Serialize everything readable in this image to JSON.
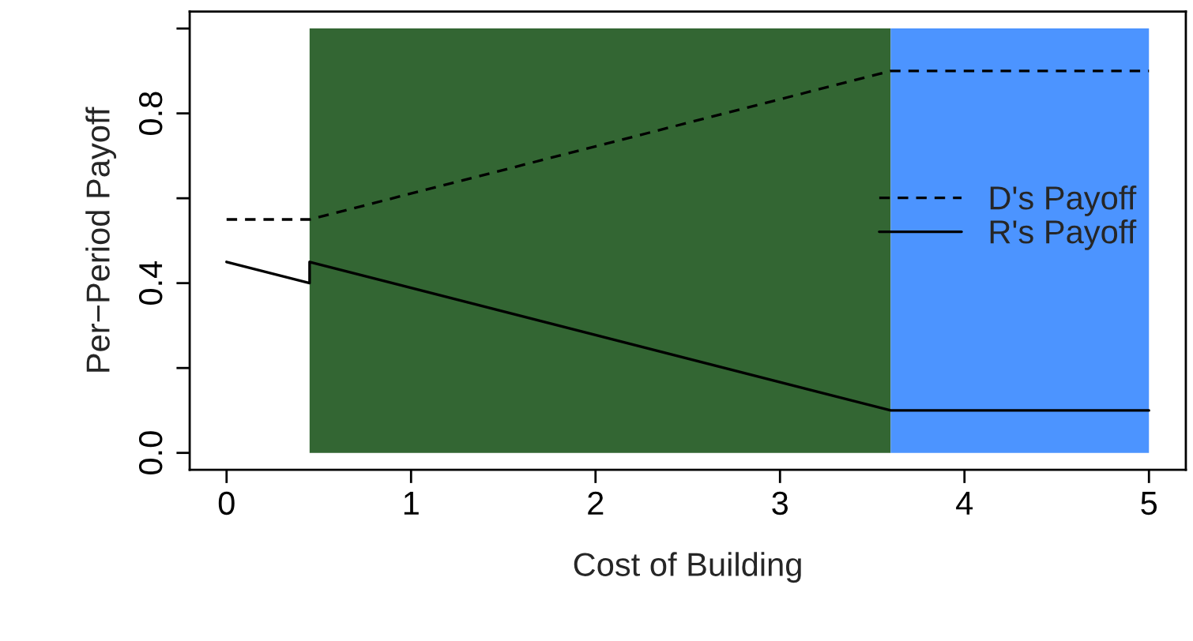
{
  "chart_data": {
    "type": "line",
    "xlabel": "Cost of Building",
    "ylabel": "Per−Period Payoff",
    "xlim": [
      -0.2,
      5.2
    ],
    "xticks": [
      0,
      1,
      2,
      3,
      4,
      5
    ],
    "ylim": [
      -0.04,
      1.04
    ],
    "yticks": [
      "0.0",
      {
        "value": 0.2,
        "label": null
      },
      {
        "value": 0.4,
        "label": "0.4"
      },
      {
        "value": 0.6,
        "label": null
      },
      {
        "value": 0.8,
        "label": "0.8"
      },
      {
        "value": 1.0,
        "label": null
      }
    ],
    "bands": [
      {
        "axis": "x",
        "from": 0.45,
        "to": 3.6,
        "color": "#336633"
      },
      {
        "axis": "x",
        "from": 3.6,
        "to": 5,
        "color": "#4c94ff"
      }
    ],
    "series": [
      {
        "name": "D's Payoff",
        "color": "#000000",
        "line_style": "dashed",
        "x": [
          0,
          0.45,
          3.6,
          5
        ],
        "values": [
          0.55,
          0.55,
          0.9,
          0.9
        ]
      },
      {
        "name": "R's Payoff",
        "color": "#000000",
        "line_style": "solid",
        "x": [
          0,
          0.45,
          0.45,
          3.6,
          5
        ],
        "values": [
          0.45,
          0.4,
          0.45,
          0.1,
          0.1
        ]
      }
    ],
    "legend": "right",
    "grid": false
  }
}
